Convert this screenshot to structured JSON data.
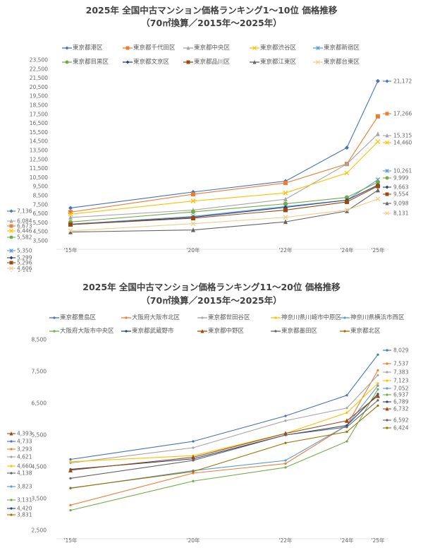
{
  "chart_data": [
    {
      "type": "line",
      "title": "2025年 全国中古マンション価格ランキング1～10位 価格推移",
      "subtitle": "（70㎡換算／2015年～2025年）",
      "categories": [
        "'15年",
        "'20年",
        "'22年",
        "'24年",
        "'25年"
      ],
      "xlabel": "",
      "ylabel": "",
      "ylim": [
        3500,
        23500
      ],
      "yticks": [
        "23,500",
        "22,500",
        "21,500",
        "20,500",
        "19,500",
        "18,500",
        "17,500",
        "16,500",
        "15,500",
        "14,500",
        "13,500",
        "12,500",
        "11,500",
        "10,500",
        "9,500",
        "8,500",
        "7,500",
        "6,500",
        "5,500",
        "4,500",
        "3,500"
      ],
      "grid": false,
      "legend_position": "top",
      "series": [
        {
          "name": "東京都港区",
          "color": "#4472C4",
          "marker": "diamond",
          "values": [
            7136,
            8900,
            10100,
            13800,
            21172
          ],
          "start_label": "7,136",
          "end_label": "21,172"
        },
        {
          "name": "東京都千代田区",
          "color": "#ED7D31",
          "marker": "square",
          "values": [
            6673,
            8650,
            9900,
            12000,
            17266
          ],
          "start_label": "6,673",
          "end_label": "17,266"
        },
        {
          "name": "東京都中央区",
          "color": "#A5A5A5",
          "marker": "triangle",
          "values": [
            6084,
            6900,
            8100,
            12000,
            15315
          ],
          "start_label": "6,084",
          "end_label": "15,315"
        },
        {
          "name": "東京都渋谷区",
          "color": "#FFC000",
          "marker": "x",
          "values": [
            6446,
            7900,
            8800,
            11000,
            14460
          ],
          "start_label": "6,446",
          "end_label": "14,460"
        },
        {
          "name": "東京都新宿区",
          "color": "#5B9BD5",
          "marker": "asterisk",
          "values": [
            5350,
            6200,
            7300,
            8000,
            10261
          ],
          "start_label": "5,350",
          "end_label": "10,261"
        },
        {
          "name": "東京都目黒区",
          "color": "#70AD47",
          "marker": "circle",
          "values": [
            5582,
            6700,
            7600,
            8300,
            9999
          ],
          "start_label": "5,582",
          "end_label": "9,999"
        },
        {
          "name": "東京都文京区",
          "color": "#264478",
          "marker": "diamond",
          "values": [
            5299,
            6100,
            7200,
            8000,
            9663
          ],
          "start_label": "5,299",
          "end_label": "9,663"
        },
        {
          "name": "東京都品川区",
          "color": "#9E480E",
          "marker": "square",
          "values": [
            5296,
            6000,
            6900,
            7800,
            9554
          ],
          "start_label": "5,296",
          "end_label": "9,554"
        },
        {
          "name": "東京都江東区",
          "color": "#636363",
          "marker": "triangle",
          "values": [
            4471,
            4700,
            5600,
            6800,
            9098
          ],
          "start_label": "4,471",
          "end_label": "9,098"
        },
        {
          "name": "東京都台東区",
          "color": "#F4CC8A",
          "marker": "x",
          "values": [
            4606,
            5400,
            6100,
            6900,
            8131
          ],
          "start_label": "4,606",
          "end_label": "8,131"
        }
      ]
    },
    {
      "type": "line",
      "title": "2025年 全国中古マンション価格ランキング11～20位 価格推移",
      "subtitle": "（70㎡換算／2015年～2025年）",
      "categories": [
        "'15年",
        "'20年",
        "'22年",
        "'24年",
        "'25年"
      ],
      "xlabel": "",
      "ylabel": "",
      "ylim": [
        2500,
        8500
      ],
      "yticks": [
        "8,500",
        "7,500",
        "6,500",
        "5,500",
        "4,500",
        "3,500",
        "2,500"
      ],
      "grid": false,
      "legend_position": "top",
      "series": [
        {
          "name": "東京都豊島区",
          "color": "#4472C4",
          "marker": "dot",
          "values": [
            4733,
            5300,
            6100,
            6750,
            8029
          ],
          "start_label": "4,733",
          "end_label": "8,029"
        },
        {
          "name": "大阪府大阪市北区",
          "color": "#ED7D31",
          "marker": "dot",
          "values": [
            3293,
            4300,
            4600,
            5800,
            7537
          ],
          "start_label": "3,293",
          "end_label": "7,537"
        },
        {
          "name": "東京都世田谷区",
          "color": "#A5A5A5",
          "marker": "dot",
          "values": [
            4621,
            5100,
            5950,
            6350,
            7383
          ],
          "start_label": "4,621",
          "end_label": "7,383"
        },
        {
          "name": "神奈川県川崎市中原区",
          "color": "#FFC000",
          "marker": "dot",
          "values": [
            4660,
            4850,
            5550,
            6200,
            7123
          ],
          "start_label": "4,660",
          "end_label": "7,123"
        },
        {
          "name": "神奈川県横浜市西区",
          "color": "#5B9BD5",
          "marker": "dot",
          "values": [
            3823,
            4380,
            4700,
            5800,
            7052
          ],
          "start_label": "3,823",
          "end_label": "7,052"
        },
        {
          "name": "大阪府大阪市中央区",
          "color": "#70AD47",
          "marker": "dot",
          "values": [
            3131,
            4050,
            4480,
            5300,
            6937
          ],
          "start_label": "3,131",
          "end_label": "6,937"
        },
        {
          "name": "東京都武蔵野市",
          "color": "#264478",
          "marker": "dot",
          "values": [
            4420,
            4750,
            5500,
            5800,
            6789
          ],
          "start_label": "4,420",
          "end_label": "6,789"
        },
        {
          "name": "東京都中野区",
          "color": "#9E480E",
          "marker": "triangle",
          "values": [
            4393,
            4800,
            5550,
            5950,
            6732
          ],
          "start_label": "4,393",
          "end_label": "6,732"
        },
        {
          "name": "東京都墨田区",
          "color": "#636363",
          "marker": "dot",
          "values": [
            4138,
            4700,
            5500,
            5750,
            6592
          ],
          "start_label": "4,138",
          "end_label": "6,592"
        },
        {
          "name": "東京都北区",
          "color": "#997300",
          "marker": "dot",
          "values": [
            3831,
            4350,
            5250,
            5600,
            6424
          ],
          "start_label": "3,831",
          "end_label": "6,424"
        }
      ]
    }
  ]
}
